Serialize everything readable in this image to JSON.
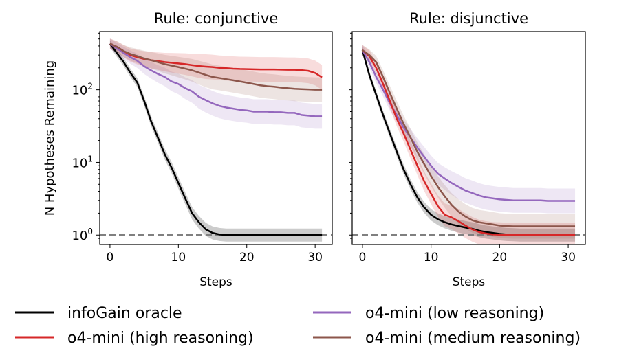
{
  "chart_data": {
    "type": "line",
    "yscale": "log",
    "ylabel": "N Hypotheses Remaining",
    "xlabel": "Steps",
    "xlim": [
      -1.5,
      32.5
    ],
    "ylog_range": [
      -0.13,
      2.8
    ],
    "xticks": [
      0,
      10,
      20,
      30
    ],
    "yticks": [
      {
        "value": 1,
        "label": "10",
        "exp": "0"
      },
      {
        "value": 10,
        "label": "10",
        "exp": "1"
      },
      {
        "value": 100,
        "label": "10",
        "exp": "2"
      }
    ],
    "reference_line": {
      "y": 1,
      "style": "dashed",
      "color": "#808080"
    },
    "legend": [
      {
        "name": "infoGain oracle",
        "color": "#000000"
      },
      {
        "name": "o4-mini (low reasoning)",
        "color": "#9467bd"
      },
      {
        "name": "o4-mini (high reasoning)",
        "color": "#d62728"
      },
      {
        "name": "o4-mini (medium reasoning)",
        "color": "#8c564b"
      }
    ],
    "x": [
      0,
      1,
      2,
      3,
      4,
      5,
      6,
      7,
      8,
      9,
      10,
      11,
      12,
      13,
      14,
      15,
      16,
      17,
      18,
      19,
      20,
      21,
      22,
      23,
      24,
      25,
      26,
      27,
      28,
      29,
      30,
      31
    ],
    "panels": [
      {
        "title": "Rule: conjunctive",
        "series": [
          {
            "name": "infoGain oracle",
            "color": "#000000",
            "values": [
              430,
              320,
              240,
              170,
              125,
              70,
              37,
              22,
              13,
              8.5,
              5.2,
              3.2,
              2,
              1.5,
              1.2,
              1.07,
              1.02,
              1,
              1,
              1,
              1,
              1,
              1,
              1,
              1,
              1,
              1,
              1,
              1,
              1,
              1,
              1
            ]
          },
          {
            "name": "o4-mini (low reasoning)",
            "color": "#9467bd",
            "values": [
              430,
              370,
              320,
              280,
              250,
              210,
              185,
              165,
              150,
              130,
              120,
              105,
              95,
              80,
              72,
              65,
              60,
              57,
              55,
              53,
              52,
              50,
              50,
              50,
              49,
              49,
              48,
              48,
              45,
              44,
              43,
              43
            ]
          },
          {
            "name": "o4-mini (high reasoning)",
            "color": "#d62728",
            "values": [
              430,
              390,
              340,
              300,
              280,
              265,
              255,
              248,
              240,
              235,
              230,
              225,
              218,
              212,
              208,
              205,
              200,
              198,
              195,
              193,
              192,
              191,
              190,
              190,
              190,
              189,
              188,
              188,
              186,
              182,
              170,
              148
            ]
          },
          {
            "name": "o4-mini (medium reasoning)",
            "color": "#8c564b",
            "values": [
              430,
              390,
              340,
              310,
              290,
              270,
              255,
              240,
              225,
              215,
              205,
              195,
              185,
              172,
              160,
              150,
              145,
              140,
              135,
              130,
              125,
              120,
              115,
              112,
              110,
              107,
              105,
              103,
              102,
              101,
              100,
              100
            ]
          }
        ]
      },
      {
        "title": "Rule: disjunctive",
        "series": [
          {
            "name": "infoGain oracle",
            "color": "#000000",
            "values": [
              350,
              160,
              85,
              45,
              25,
              14,
              8,
              5,
              3.3,
              2.4,
              1.9,
              1.65,
              1.5,
              1.4,
              1.33,
              1.27,
              1.22,
              1.15,
              1.1,
              1.07,
              1.04,
              1.02,
              1.01,
              1,
              1,
              1,
              1,
              1,
              1,
              1,
              1,
              1
            ]
          },
          {
            "name": "o4-mini (low reasoning)",
            "color": "#9467bd",
            "values": [
              350,
              240,
              150,
              100,
              65,
              45,
              30,
              22,
              16,
              12,
              9,
              7,
              6,
              5.2,
              4.6,
              4.1,
              3.8,
              3.5,
              3.3,
              3.2,
              3.1,
              3.05,
              3,
              3,
              3,
              3,
              3,
              2.95,
              2.95,
              2.95,
              2.95,
              2.95
            ]
          },
          {
            "name": "o4-mini (high reasoning)",
            "color": "#d62728",
            "values": [
              350,
              290,
              200,
              120,
              70,
              40,
              25,
              15,
              9,
              5.5,
              3.7,
              2.5,
              1.9,
              1.75,
              1.55,
              1.35,
              1.2,
              1.1,
              1.05,
              1.02,
              1.01,
              1,
              1,
              1,
              1,
              1,
              1,
              1,
              1,
              1,
              1,
              1
            ]
          },
          {
            "name": "o4-mini (medium reasoning)",
            "color": "#8c564b",
            "values": [
              350,
              300,
              240,
              150,
              90,
              55,
              34,
              22,
              14,
              9.5,
              6.5,
              4.6,
              3.4,
              2.6,
              2.1,
              1.8,
              1.6,
              1.5,
              1.45,
              1.4,
              1.35,
              1.33,
              1.32,
              1.32,
              1.32,
              1.32,
              1.32,
              1.32,
              1.32,
              1.32,
              1.32,
              1.32
            ]
          }
        ]
      }
    ]
  }
}
